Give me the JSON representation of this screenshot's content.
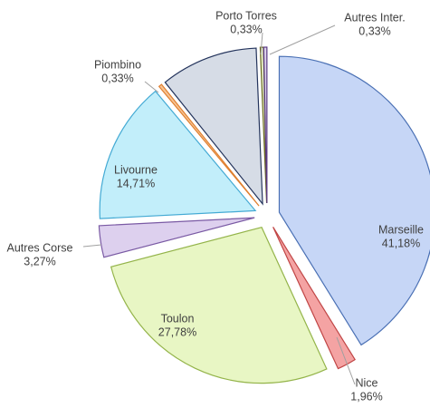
{
  "chart_data": {
    "type": "pie",
    "categories": [
      "Marseille",
      "Nice",
      "Toulon",
      "Autres Corse",
      "Livourne",
      "Piombino",
      null,
      "Porto Torres",
      "Autres Inter."
    ],
    "values": [
      41.18,
      1.96,
      27.78,
      3.27,
      14.71,
      0.33,
      10.11,
      0.33,
      0.33
    ],
    "value_labels": [
      "41,18%",
      "1,96%",
      "27,78%",
      "3,27%",
      "14,71%",
      "0,33%",
      null,
      "0,33%",
      "0,33%"
    ],
    "colors": [
      "#c6d6f6",
      "#f4a3a3",
      "#e8f6c4",
      "#ddd0ee",
      "#c2eefa",
      "#f6c394",
      "#d6dce6",
      "#e8efcc",
      "#dcd2e8"
    ],
    "strokes": [
      "#4a70b4",
      "#c04545",
      "#94b44a",
      "#7a5aa4",
      "#44aad4",
      "#e08030",
      "#24345c",
      "#6a6a20",
      "#5a3a84"
    ]
  }
}
